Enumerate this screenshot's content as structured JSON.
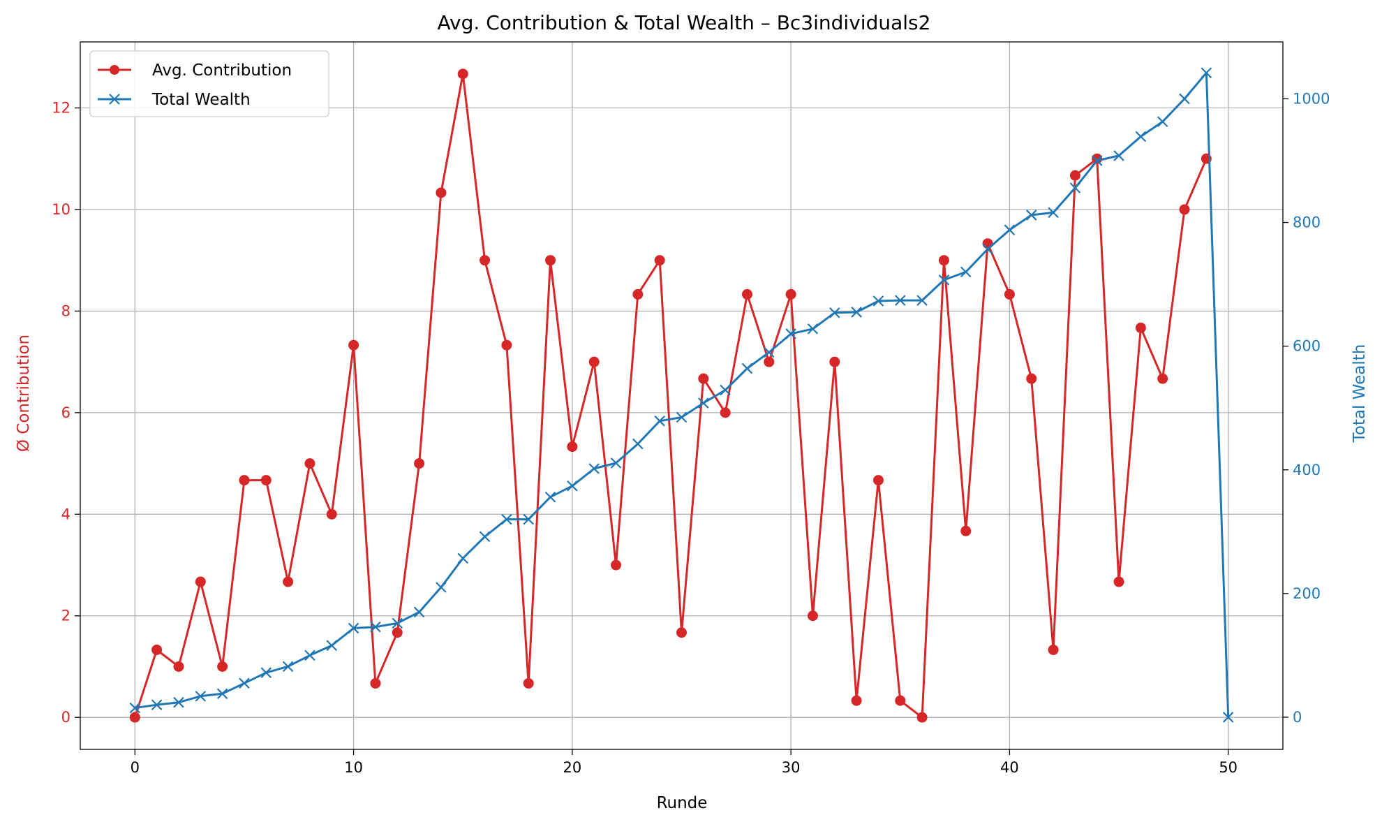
{
  "chart_data": {
    "type": "line",
    "title": "Avg. Contribution & Total Wealth – Bc3individuals2",
    "xlabel": "Runde",
    "ylabel_left": "Ø Contribution",
    "ylabel_right": "Total Wealth",
    "xlim": [
      -2.5,
      52.5
    ],
    "ylim_left": [
      -0.63,
      13.3
    ],
    "ylim_right": [
      -52,
      1092
    ],
    "xticks": [
      0,
      10,
      20,
      30,
      40,
      50
    ],
    "yticks_left": [
      0,
      2,
      4,
      6,
      8,
      10,
      12
    ],
    "yticks_right": [
      0,
      200,
      400,
      600,
      800,
      1000
    ],
    "grid": true,
    "legend_position": "top-left",
    "colors": {
      "contribution": "#d62728",
      "wealth": "#1f77b4"
    },
    "series": [
      {
        "name": "Avg. Contribution",
        "axis": "left",
        "marker": "circle",
        "x": [
          0,
          1,
          2,
          3,
          4,
          5,
          6,
          7,
          8,
          9,
          10,
          11,
          12,
          13,
          14,
          15,
          16,
          17,
          18,
          19,
          20,
          21,
          22,
          23,
          24,
          25,
          26,
          27,
          28,
          29,
          30,
          31,
          32,
          33,
          34,
          35,
          36,
          37,
          38,
          39,
          40,
          41,
          42,
          43,
          44,
          45,
          46,
          47,
          48,
          49
        ],
        "values": [
          0,
          1.33,
          1,
          2.67,
          1,
          4.67,
          4.67,
          2.67,
          5,
          4,
          7.33,
          0.67,
          1.67,
          5,
          10.33,
          12.67,
          9,
          7.33,
          0.67,
          9,
          5.33,
          7,
          3,
          8.33,
          9,
          1.67,
          6.67,
          6,
          8.33,
          7,
          8.33,
          2,
          7,
          0.33,
          4.67,
          0.33,
          0,
          9,
          3.67,
          9.33,
          8.33,
          6.67,
          1.33,
          10.67,
          11,
          2.67,
          7.67,
          6.67,
          10,
          11
        ]
      },
      {
        "name": "Total Wealth",
        "axis": "right",
        "marker": "x",
        "x": [
          0,
          1,
          2,
          3,
          4,
          5,
          6,
          7,
          8,
          9,
          10,
          11,
          12,
          13,
          14,
          15,
          16,
          17,
          18,
          19,
          20,
          21,
          22,
          23,
          24,
          25,
          26,
          27,
          28,
          29,
          30,
          31,
          32,
          33,
          34,
          35,
          36,
          37,
          38,
          39,
          40,
          41,
          42,
          43,
          44,
          45,
          46,
          47,
          48,
          49,
          50
        ],
        "values": [
          15,
          20,
          24,
          34,
          38,
          55,
          72,
          82,
          100,
          116,
          144,
          146,
          152,
          170,
          210,
          257,
          292,
          320,
          320,
          356,
          374,
          402,
          411,
          442,
          479,
          485,
          508,
          529,
          564,
          590,
          620,
          628,
          654,
          655,
          673,
          674,
          674,
          707,
          720,
          757,
          788,
          812,
          816,
          856,
          900,
          908,
          939,
          963,
          1000,
          1042,
          0
        ]
      }
    ]
  }
}
